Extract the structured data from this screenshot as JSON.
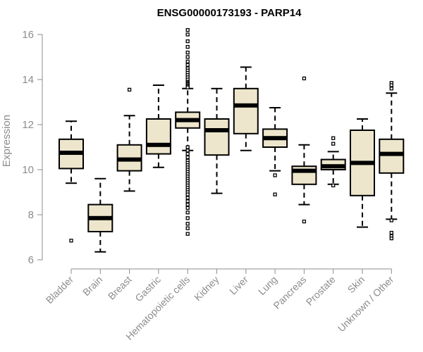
{
  "chart_data": {
    "type": "box",
    "title": "ENSG00000173193 - PARP14",
    "xlabel": "",
    "ylabel": "Expression",
    "ylim": [
      6,
      16.4
    ],
    "yticks": [
      6,
      8,
      10,
      12,
      14,
      16
    ],
    "grid": false,
    "colors": {
      "box_fill": "#ede6cc",
      "stroke": "#000000",
      "axis": "#8c8c8c"
    },
    "categories": [
      "Bladder",
      "Brain",
      "Breast",
      "Gastric",
      "Hematopoietic cells",
      "Kidney",
      "Liver",
      "Lung",
      "Pancreas",
      "Prostate",
      "Skin",
      "Unknown / Other"
    ],
    "boxes": [
      {
        "min": 9.4,
        "q1": 10.05,
        "median": 10.75,
        "q3": 11.35,
        "max": 12.15,
        "outliers": [
          6.85
        ]
      },
      {
        "min": 6.35,
        "q1": 7.25,
        "median": 7.85,
        "q3": 8.45,
        "max": 9.6,
        "outliers": []
      },
      {
        "min": 9.05,
        "q1": 9.95,
        "median": 10.45,
        "q3": 11.1,
        "max": 12.4,
        "outliers": [
          13.55
        ]
      },
      {
        "min": 10.1,
        "q1": 10.7,
        "median": 11.1,
        "q3": 12.25,
        "max": 13.75,
        "outliers": []
      },
      {
        "min": 10.85,
        "q1": 11.85,
        "median": 12.2,
        "q3": 12.55,
        "max": 13.6,
        "outliers": [
          16.2,
          16.0,
          15.7,
          15.45,
          15.2,
          15.0,
          14.8,
          14.65,
          14.5,
          14.4,
          14.3,
          14.2,
          14.1,
          14.0,
          13.9,
          13.85,
          13.8,
          13.75,
          13.7,
          13.65,
          11.0,
          10.85,
          10.7,
          10.55,
          10.4,
          10.3,
          10.2,
          10.1,
          10.0,
          9.9,
          9.8,
          9.7,
          9.6,
          9.5,
          9.4,
          9.3,
          9.2,
          9.1,
          9.0,
          8.9,
          8.75,
          8.6,
          8.45,
          8.3,
          8.1,
          7.85,
          7.6,
          7.4,
          7.15
        ]
      },
      {
        "min": 8.95,
        "q1": 10.65,
        "median": 11.75,
        "q3": 12.25,
        "max": 13.6,
        "outliers": []
      },
      {
        "min": 10.85,
        "q1": 11.6,
        "median": 12.85,
        "q3": 13.6,
        "max": 14.55,
        "outliers": []
      },
      {
        "min": 9.95,
        "q1": 11.0,
        "median": 11.4,
        "q3": 11.8,
        "max": 12.75,
        "outliers": [
          9.75,
          8.9
        ]
      },
      {
        "min": 8.45,
        "q1": 9.35,
        "median": 9.95,
        "q3": 10.15,
        "max": 11.1,
        "outliers": [
          14.05,
          7.7
        ]
      },
      {
        "min": 9.35,
        "q1": 10.0,
        "median": 10.15,
        "q3": 10.45,
        "max": 10.8,
        "outliers": [
          11.4,
          11.15,
          9.3
        ]
      },
      {
        "min": 7.45,
        "q1": 8.85,
        "median": 10.3,
        "q3": 11.75,
        "max": 12.25,
        "outliers": []
      },
      {
        "min": 7.8,
        "q1": 9.85,
        "median": 10.7,
        "q3": 11.35,
        "max": 13.4,
        "outliers": [
          13.85,
          13.75,
          13.6,
          7.75,
          7.2,
          7.05,
          6.95
        ]
      }
    ]
  }
}
